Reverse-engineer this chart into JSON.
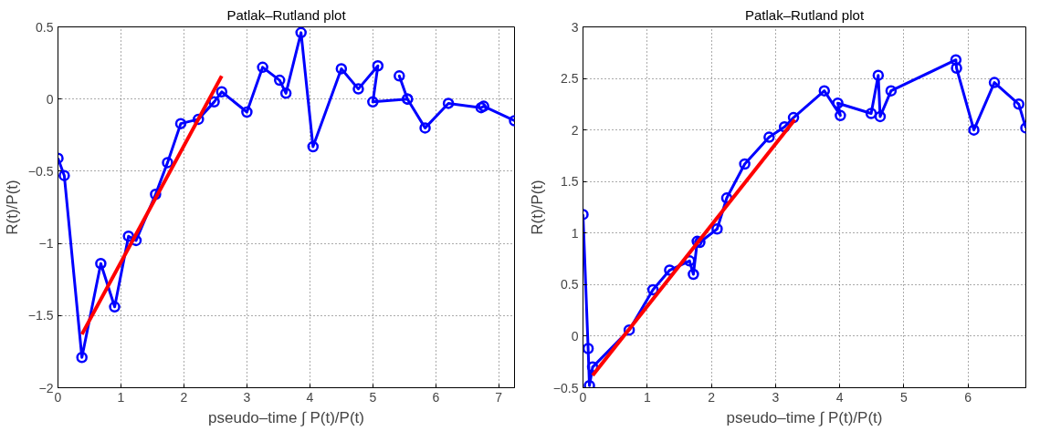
{
  "chart_data": [
    {
      "type": "line",
      "title": "Patlak–Rutland plot",
      "xlabel": "pseudo–time ∫ P(t)/P(t)",
      "ylabel": "R(t)/P(t)",
      "xlim": [
        0,
        7.25
      ],
      "ylim": [
        -2,
        0.5
      ],
      "xticks": [
        0,
        1,
        2,
        3,
        4,
        5,
        6,
        7
      ],
      "yticks": [
        -2,
        -1.5,
        -1,
        -0.5,
        0,
        0.5
      ],
      "grid": true,
      "series": [
        {
          "color": "#0000ff",
          "marker": "circle",
          "line_style": "solid",
          "x": [
            0,
            0.1,
            0.38,
            0.68,
            0.9,
            1.12,
            1.24,
            1.55,
            1.74,
            1.95,
            2.23,
            2.48,
            2.6,
            3.0,
            3.25,
            3.52,
            3.62,
            3.86,
            4.05,
            4.5,
            4.77,
            5.08,
            5.0,
            5.55,
            5.42,
            5.55,
            5.83,
            6.2,
            6.72,
            6.76,
            7.25
          ],
          "values": [
            -0.41,
            -0.53,
            -1.79,
            -1.14,
            -1.44,
            -0.95,
            -0.98,
            -0.66,
            -0.44,
            -0.17,
            -0.14,
            -0.02,
            0.05,
            -0.09,
            0.22,
            0.13,
            0.04,
            0.46,
            -0.33,
            0.21,
            0.07,
            0.23,
            -0.02,
            0.0,
            0.16,
            0.0,
            -0.2,
            -0.03,
            -0.06,
            -0.05,
            -0.15
          ]
        },
        {
          "color": "#ff0000",
          "marker": "none",
          "line_style": "solid",
          "x": [
            0.38,
            2.6
          ],
          "values": [
            -1.63,
            0.16
          ]
        }
      ]
    },
    {
      "type": "line",
      "title": "Patlak–Rutland plot",
      "xlabel": "pseudo–time ∫ P(t)/P(t)",
      "ylabel": "R(t)/P(t)",
      "xlim": [
        0,
        6.9
      ],
      "ylim": [
        -0.5,
        3
      ],
      "xticks": [
        0,
        1,
        2,
        3,
        4,
        5,
        6
      ],
      "yticks": [
        -0.5,
        0,
        0.5,
        1,
        1.5,
        2,
        2.5,
        3
      ],
      "grid": true,
      "series": [
        {
          "color": "#0000ff",
          "marker": "circle",
          "line_style": "solid",
          "x": [
            0,
            0.08,
            0.1,
            0.15,
            0.72,
            1.09,
            1.35,
            1.66,
            1.72,
            1.78,
            1.82,
            2.09,
            2.24,
            2.52,
            2.9,
            3.14,
            3.28,
            3.76,
            4.01,
            3.97,
            4.49,
            4.6,
            4.63,
            4.8,
            5.81,
            5.82,
            6.09,
            6.41,
            6.79,
            6.9
          ],
          "values": [
            1.18,
            -0.12,
            -0.48,
            -0.3,
            0.06,
            0.45,
            0.64,
            0.73,
            0.6,
            0.92,
            0.91,
            1.04,
            1.34,
            1.67,
            1.93,
            2.03,
            2.12,
            2.38,
            2.14,
            2.26,
            2.16,
            2.53,
            2.13,
            2.38,
            2.68,
            2.6,
            2.0,
            2.46,
            2.25,
            2.02
          ]
        },
        {
          "color": "#ff0000",
          "marker": "none",
          "line_style": "solid",
          "x": [
            0.15,
            3.3
          ],
          "values": [
            -0.38,
            2.1
          ]
        }
      ]
    }
  ]
}
